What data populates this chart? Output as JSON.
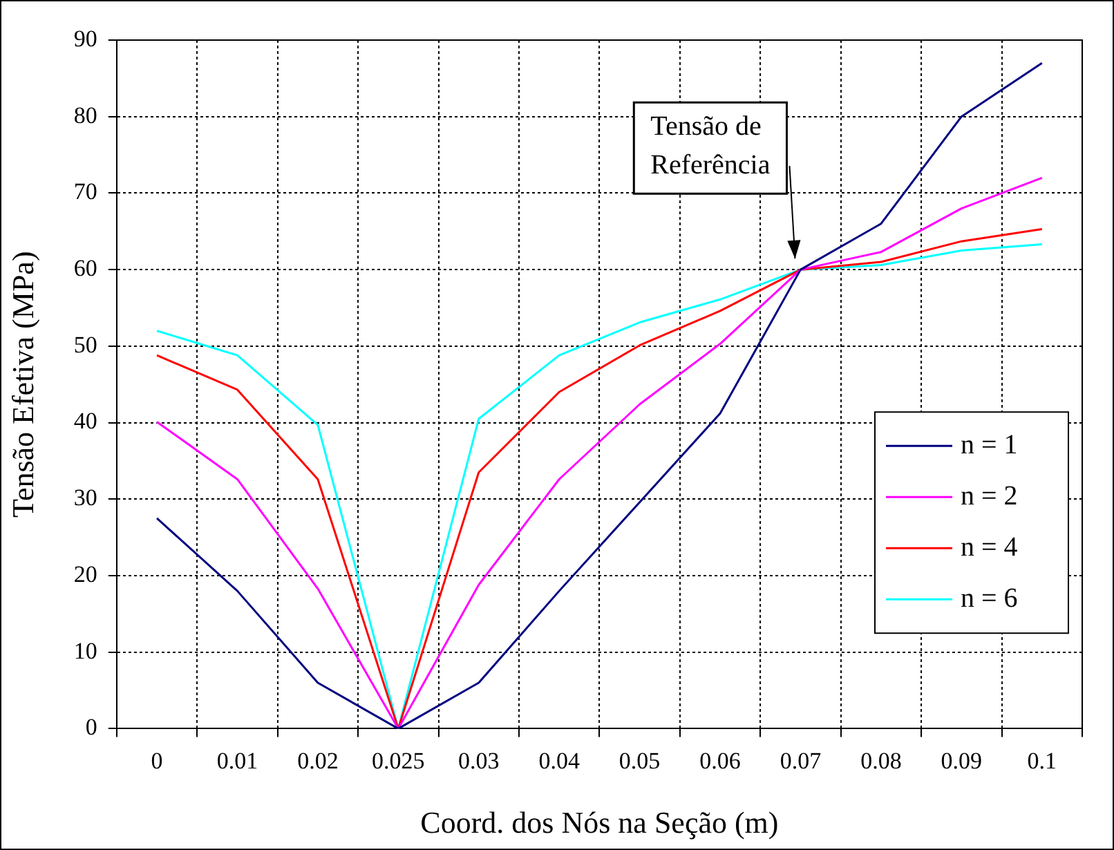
{
  "chart_data": {
    "type": "line",
    "xlabel": "Coord. dos Nós na Seção (m)",
    "ylabel": "Tensão Efetiva (MPa)",
    "categories": [
      "0",
      "0.01",
      "0.02",
      "0.025",
      "0.03",
      "0.04",
      "0.05",
      "0.06",
      "0.07",
      "0.08",
      "0.09",
      "0.1"
    ],
    "series": [
      {
        "name": "n = 1",
        "color": "#000080",
        "values": [
          27.5,
          18,
          6,
          0,
          6,
          18,
          29.6,
          41.2,
          60,
          66,
          80,
          87
        ]
      },
      {
        "name": "n = 2",
        "color": "#ff00ff",
        "values": [
          40.1,
          32.6,
          18.3,
          0,
          18.8,
          32.6,
          42.4,
          50.3,
          60,
          62.3,
          68,
          72
        ]
      },
      {
        "name": "n = 4",
        "color": "#ff0000",
        "values": [
          48.8,
          44.3,
          32.6,
          0,
          33.5,
          44,
          50.1,
          54.6,
          60,
          61,
          63.7,
          65.3
        ]
      },
      {
        "name": "n = 6",
        "color": "#00ffff",
        "values": [
          52,
          48.8,
          39.7,
          0,
          40.5,
          48.8,
          53.1,
          56.1,
          60,
          60.6,
          62.5,
          63.3
        ]
      }
    ],
    "ylim": [
      0,
      90
    ],
    "yticks": [
      0,
      10,
      20,
      30,
      40,
      50,
      60,
      70,
      80,
      90
    ],
    "grid": true,
    "legend": "right",
    "marker": "none",
    "line_style": "solid",
    "annotations": [
      {
        "text": "Tensão de\nReferência",
        "x": "0.07",
        "y": 60
      }
    ]
  }
}
